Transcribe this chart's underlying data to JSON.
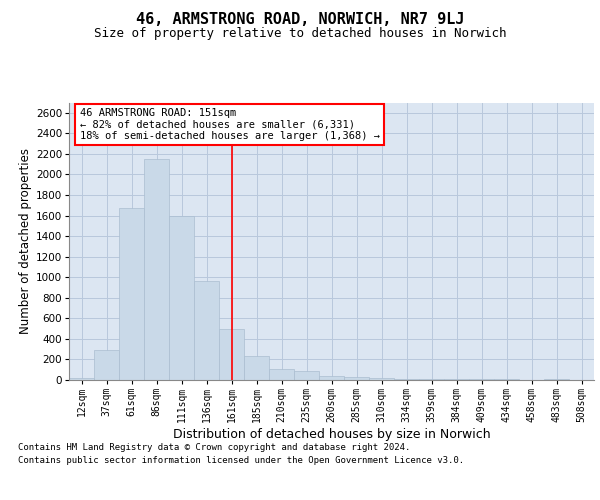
{
  "title1": "46, ARMSTRONG ROAD, NORWICH, NR7 9LJ",
  "title2": "Size of property relative to detached houses in Norwich",
  "xlabel": "Distribution of detached houses by size in Norwich",
  "ylabel": "Number of detached properties",
  "categories": [
    "12sqm",
    "37sqm",
    "61sqm",
    "86sqm",
    "111sqm",
    "136sqm",
    "161sqm",
    "185sqm",
    "210sqm",
    "235sqm",
    "260sqm",
    "285sqm",
    "310sqm",
    "334sqm",
    "359sqm",
    "384sqm",
    "409sqm",
    "434sqm",
    "458sqm",
    "483sqm",
    "508sqm"
  ],
  "values": [
    20,
    290,
    1670,
    2150,
    1600,
    960,
    500,
    235,
    110,
    90,
    35,
    25,
    22,
    10,
    5,
    10,
    5,
    5,
    2,
    10,
    2
  ],
  "bar_color": "#c9d9e8",
  "bar_edgecolor": "#aabdd0",
  "vline_color": "red",
  "annotation_text": "46 ARMSTRONG ROAD: 151sqm\n← 82% of detached houses are smaller (6,331)\n18% of semi-detached houses are larger (1,368) →",
  "annotation_box_color": "white",
  "annotation_box_edgecolor": "red",
  "ylim": [
    0,
    2700
  ],
  "yticks": [
    0,
    200,
    400,
    600,
    800,
    1000,
    1200,
    1400,
    1600,
    1800,
    2000,
    2200,
    2400,
    2600
  ],
  "grid_color": "#b8c8dc",
  "background_color": "#dce6f2",
  "footer1": "Contains HM Land Registry data © Crown copyright and database right 2024.",
  "footer2": "Contains public sector information licensed under the Open Government Licence v3.0."
}
